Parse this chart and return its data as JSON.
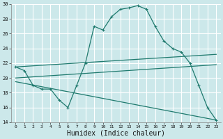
{
  "xlabel": "Humidex (Indice chaleur)",
  "bg_color": "#cce8ea",
  "grid_color": "#ffffff",
  "line_color": "#1f7a6e",
  "xlim": [
    -0.5,
    23.5
  ],
  "ylim": [
    14,
    30
  ],
  "yticks": [
    14,
    16,
    18,
    20,
    22,
    24,
    26,
    28,
    30
  ],
  "xticks": [
    0,
    1,
    2,
    3,
    4,
    5,
    6,
    7,
    8,
    9,
    10,
    11,
    12,
    13,
    14,
    15,
    16,
    17,
    18,
    19,
    20,
    21,
    22,
    23
  ],
  "line1_x": [
    0,
    1,
    2,
    3,
    4,
    5,
    6,
    7,
    8,
    9,
    10,
    11,
    12,
    13,
    14,
    15,
    16,
    17,
    18,
    19,
    20,
    21,
    22,
    23
  ],
  "line1_y": [
    21.5,
    21.0,
    19.0,
    18.5,
    18.5,
    17.0,
    16.0,
    19.0,
    22.0,
    27.0,
    26.5,
    28.3,
    29.3,
    29.5,
    29.8,
    29.3,
    27.0,
    25.0,
    24.0,
    23.5,
    22.0,
    19.0,
    16.0,
    14.3
  ],
  "line2_x": [
    0,
    23
  ],
  "line2_y": [
    21.5,
    23.2
  ],
  "line3_x": [
    0,
    23
  ],
  "line3_y": [
    20.0,
    21.8
  ],
  "line4_x": [
    0,
    23
  ],
  "line4_y": [
    19.5,
    14.3
  ],
  "xlabel_fontsize": 7,
  "ytick_fontsize": 5,
  "xtick_fontsize": 4.5
}
